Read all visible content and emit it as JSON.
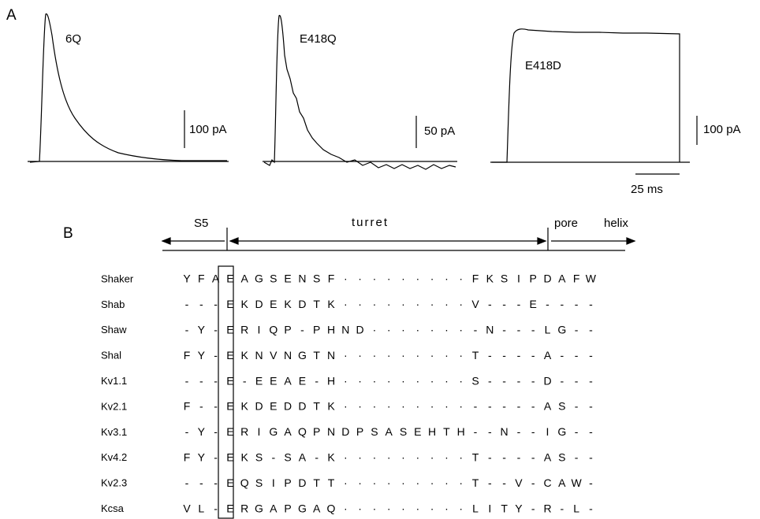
{
  "panel_a": {
    "label": "A",
    "traces": [
      {
        "name": "6Q",
        "scale_bar": "100 pA"
      },
      {
        "name": "E418Q",
        "scale_bar": "50 pA"
      },
      {
        "name": "E418D",
        "scale_bar": "100 pA"
      }
    ],
    "time_bar": "25 ms"
  },
  "panel_b": {
    "label": "B",
    "regions": [
      "S5",
      "turret",
      "pore",
      "helix"
    ],
    "rows": [
      {
        "name": "Shaker",
        "residues": [
          "Y",
          "F",
          "A",
          "E",
          "A",
          "G",
          "S",
          "E",
          "N",
          "S",
          "F",
          "·",
          "·",
          "·",
          "·",
          "·",
          "·",
          "·",
          "·",
          "·",
          "F",
          "K",
          "S",
          "I",
          "P",
          "D",
          "A",
          "F",
          "W"
        ]
      },
      {
        "name": "Shab",
        "residues": [
          "-",
          "-",
          "-",
          "E",
          "K",
          "D",
          "E",
          "K",
          "D",
          "T",
          "K",
          "·",
          "·",
          "·",
          "·",
          "·",
          "·",
          "·",
          "·",
          "·",
          "V",
          "-",
          "-",
          "-",
          "E",
          "-",
          "-",
          "-",
          "-"
        ]
      },
      {
        "name": "Shaw",
        "residues": [
          "-",
          "Y",
          "-",
          "E",
          "R",
          "I",
          "Q",
          "P",
          "-",
          "P",
          "H",
          "N",
          "D",
          "·",
          "·",
          "·",
          "·",
          "·",
          "·",
          "·",
          "-",
          "N",
          "-",
          "-",
          "-",
          "L",
          "G",
          "-",
          "-"
        ]
      },
      {
        "name": "Shal",
        "residues": [
          "F",
          "Y",
          "-",
          "E",
          "K",
          "N",
          "V",
          "N",
          "G",
          "T",
          "N",
          "·",
          "·",
          "·",
          "·",
          "·",
          "·",
          "·",
          "·",
          "·",
          "T",
          "-",
          "-",
          "-",
          "-",
          "A",
          "-",
          "-",
          "-"
        ]
      },
      {
        "name": "Kv1.1",
        "residues": [
          "-",
          "-",
          "-",
          "E",
          "-",
          "E",
          "E",
          "A",
          "E",
          "-",
          "H",
          "·",
          "·",
          "·",
          "·",
          "·",
          "·",
          "·",
          "·",
          "·",
          "S",
          "-",
          "-",
          "-",
          "-",
          "D",
          "-",
          "-",
          "-"
        ]
      },
      {
        "name": "Kv2.1",
        "residues": [
          "F",
          "-",
          "-",
          "E",
          "K",
          "D",
          "E",
          "D",
          "D",
          "T",
          "K",
          "·",
          "·",
          "·",
          "·",
          "·",
          "·",
          "·",
          "·",
          "·",
          "-",
          "-",
          "-",
          "-",
          "-",
          "A",
          "S",
          "-",
          "-"
        ]
      },
      {
        "name": "Kv3.1",
        "residues": [
          "-",
          "Y",
          "-",
          "E",
          "R",
          "I",
          "G",
          "A",
          "Q",
          "P",
          "N",
          "D",
          "P",
          "S",
          "A",
          "S",
          "E",
          "H",
          "T",
          "H",
          "-",
          "-",
          "N",
          "-",
          "-",
          "I",
          "G",
          "-",
          "-"
        ]
      },
      {
        "name": "Kv4.2",
        "residues": [
          "F",
          "Y",
          "-",
          "E",
          "K",
          "S",
          "-",
          "S",
          "A",
          "-",
          "K",
          "·",
          "·",
          "·",
          "·",
          "·",
          "·",
          "·",
          "·",
          "·",
          "T",
          "-",
          "-",
          "-",
          "-",
          "A",
          "S",
          "-",
          "-"
        ]
      },
      {
        "name": "Kv2.3",
        "residues": [
          "-",
          "-",
          "-",
          "E",
          "Q",
          "S",
          "I",
          "P",
          "D",
          "T",
          "T",
          "·",
          "·",
          "·",
          "·",
          "·",
          "·",
          "·",
          "·",
          "·",
          "T",
          "-",
          "-",
          "V",
          "-",
          "C",
          "A",
          "W",
          "-"
        ]
      },
      {
        "name": "Kcsa",
        "residues": [
          "V",
          "L",
          "-",
          "E",
          "R",
          "G",
          "A",
          "P",
          "G",
          "A",
          "Q",
          "·",
          "·",
          "·",
          "·",
          "·",
          "·",
          "·",
          "·",
          "·",
          "L",
          "I",
          "T",
          "Y",
          "-",
          "R",
          "-",
          "L",
          "-"
        ]
      }
    ]
  }
}
